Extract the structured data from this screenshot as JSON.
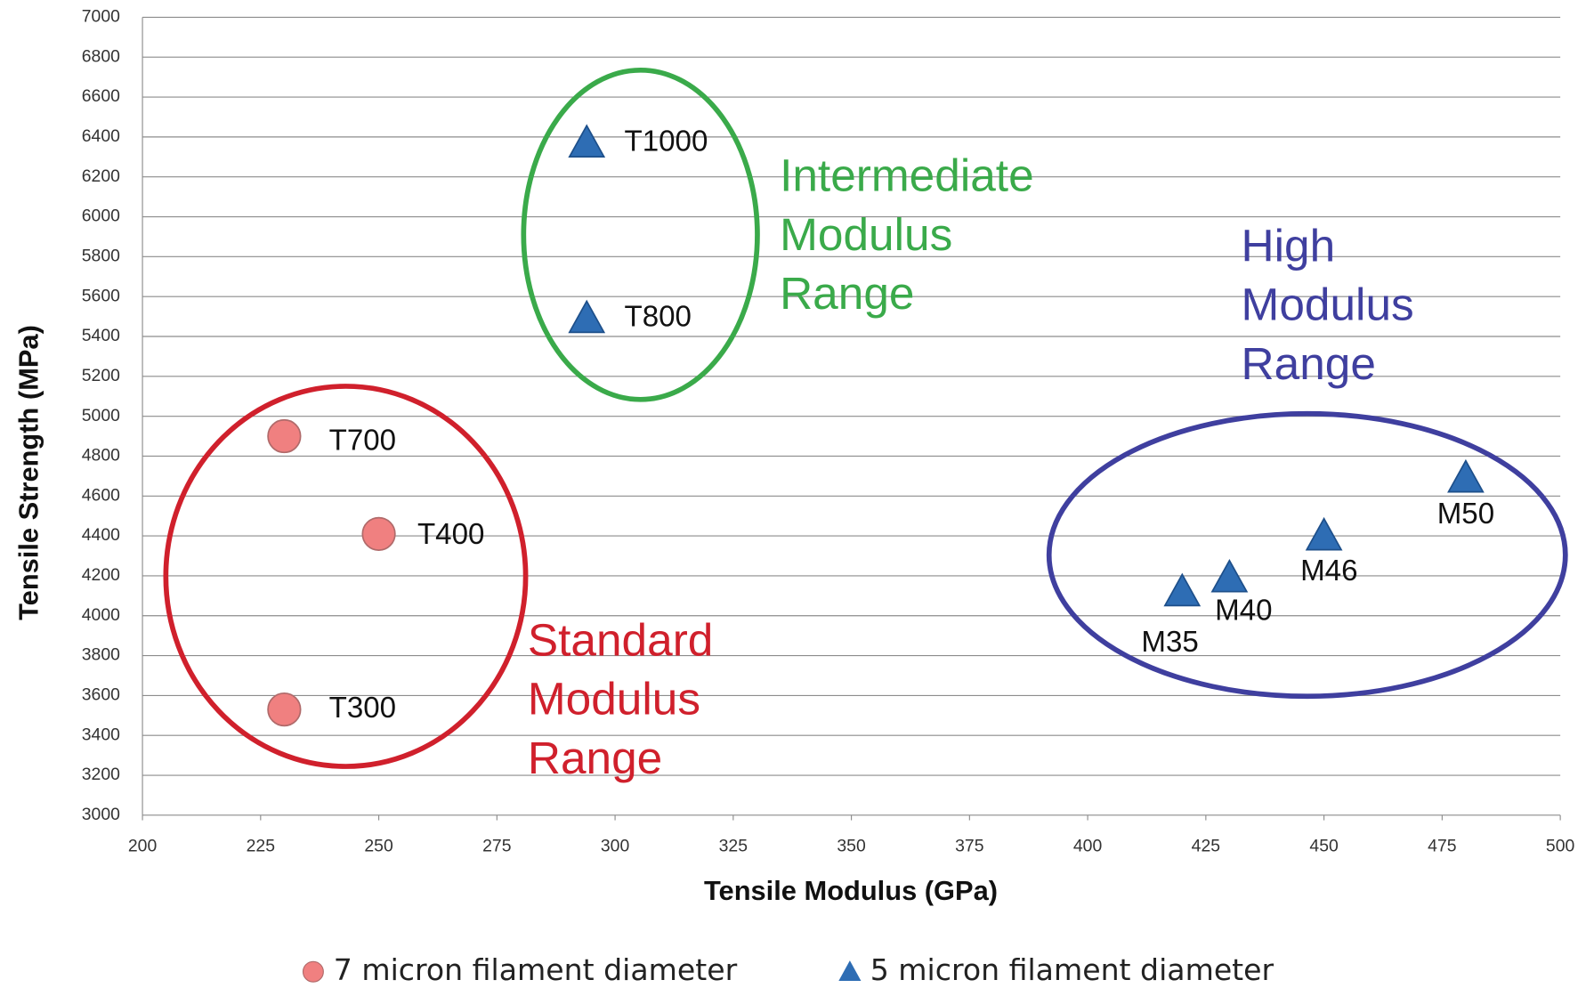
{
  "chart_data": {
    "type": "scatter",
    "x_label": "Tensile Modulus (GPa)",
    "y_label": "Tensile Strength (MPa)",
    "xlim": [
      200,
      500
    ],
    "xticks": [
      200,
      225,
      250,
      275,
      300,
      325,
      350,
      375,
      400,
      425,
      450,
      475,
      500
    ],
    "ylim": [
      3000,
      7000
    ],
    "yticks": [
      3000,
      3200,
      3400,
      3600,
      3800,
      4000,
      4200,
      4400,
      4600,
      4800,
      5000,
      5200,
      5400,
      5600,
      5800,
      6000,
      6200,
      6400,
      6600,
      6800,
      7000
    ],
    "grid": true,
    "series": [
      {
        "name": "7 micron filament diameter",
        "color": "#f08080",
        "marker": "circle",
        "labels": [
          "T300",
          "T400",
          "T700"
        ],
        "x": [
          230,
          250,
          230
        ],
        "values": [
          3530,
          4410,
          4900
        ]
      },
      {
        "name": "5 micron filament diameter",
        "color": "#2e6db4",
        "marker": "triangle",
        "labels": [
          "T800",
          "T1000",
          "M35",
          "M40",
          "M46",
          "M50"
        ],
        "x": [
          294,
          294,
          420,
          430,
          450,
          480
        ],
        "values": [
          5490,
          6370,
          4120,
          4190,
          4400,
          4690
        ]
      }
    ],
    "annotations": [
      {
        "text": [
          "Standard",
          "Modulus",
          "Range"
        ],
        "color": "#d0202c"
      },
      {
        "text": [
          "Intermediate",
          "Modulus",
          "Range"
        ],
        "color": "#3aaa4a"
      },
      {
        "text": [
          "High",
          "Modulus",
          "Range"
        ],
        "color": "#3f3f9f"
      }
    ]
  }
}
